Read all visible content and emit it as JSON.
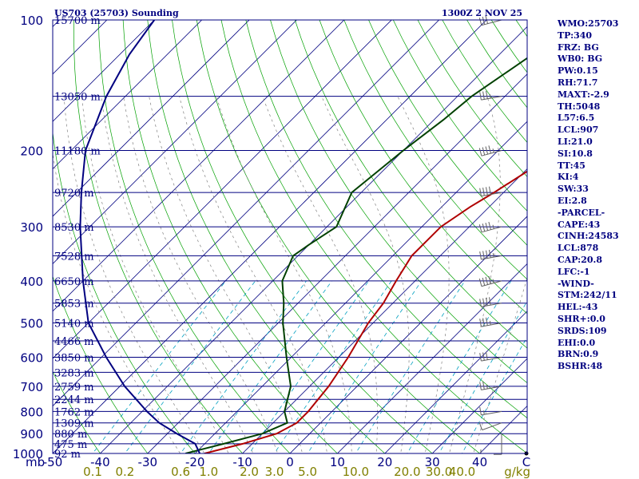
{
  "header": {
    "station": "US703 (25703) Sounding",
    "time": "1300Z  2 NOV 25"
  },
  "chart_data": {
    "type": "line",
    "title": "US703 (25703) Sounding",
    "xlabel": "C",
    "ylabel": "mb",
    "x_range": [
      -50,
      50
    ],
    "x_ticks": [
      -50,
      -40,
      -30,
      -20,
      -10,
      0,
      10,
      20,
      30,
      40
    ],
    "x_tick_labels": [
      "-50",
      "-40",
      "-30",
      "-20",
      "-10",
      "0",
      "10",
      "20",
      "30",
      "40"
    ],
    "y_range_mb": [
      1000,
      100
    ],
    "pressure_ticks": [
      100,
      200,
      300,
      400,
      500,
      600,
      700,
      800,
      900,
      1000
    ],
    "mixing_ratio_unit": "g/kg",
    "mixing_ratio_values": [
      0.1,
      0.2,
      0.6,
      1.0,
      2.0,
      3.0,
      5.0,
      10.0,
      20.0,
      30.0,
      40.0
    ],
    "mixing_ratio_labels": [
      "0.1",
      "0.2",
      "0.6",
      "1.0",
      "2.0",
      "3.0",
      "5.0",
      "10.0",
      "20.0",
      "30.0",
      "40.0"
    ],
    "height_levels": [
      {
        "p": 100,
        "label": "15700 m"
      },
      {
        "p": 150,
        "label": "13050 m"
      },
      {
        "p": 200,
        "label": "11180 m"
      },
      {
        "p": 250,
        "label": "9720 m"
      },
      {
        "p": 300,
        "label": "8530 m"
      },
      {
        "p": 350,
        "label": "7528 m"
      },
      {
        "p": 400,
        "label": "6650 m"
      },
      {
        "p": 450,
        "label": "5853 m"
      },
      {
        "p": 500,
        "label": "5140 m"
      },
      {
        "p": 550,
        "label": "4466 m"
      },
      {
        "p": 600,
        "label": "3850 m"
      },
      {
        "p": 650,
        "label": "3283 m"
      },
      {
        "p": 700,
        "label": "2759 m"
      },
      {
        "p": 750,
        "label": "2244 m"
      },
      {
        "p": 800,
        "label": "1762 m"
      },
      {
        "p": 850,
        "label": "1309 m"
      },
      {
        "p": 900,
        "label": "880 m"
      },
      {
        "p": 950,
        "label": "475 m"
      },
      {
        "p": 1000,
        "label": "92 m"
      }
    ],
    "series": [
      {
        "name": "temperature",
        "color": "#b00000",
        "points": [
          [
            1000,
            -18
          ],
          [
            950,
            -12
          ],
          [
            900,
            -7
          ],
          [
            850,
            -5
          ],
          [
            800,
            -5
          ],
          [
            700,
            -6
          ],
          [
            600,
            -8
          ],
          [
            500,
            -11
          ],
          [
            450,
            -12
          ],
          [
            400,
            -14
          ],
          [
            350,
            -16
          ],
          [
            300,
            -16
          ],
          [
            270,
            -14
          ],
          [
            250,
            -12
          ],
          [
            200,
            -7
          ],
          [
            170,
            -6
          ],
          [
            150,
            -5
          ],
          [
            120,
            -3
          ],
          [
            100,
            -3
          ]
        ]
      },
      {
        "name": "dewpoint",
        "color": "#004000",
        "points": [
          [
            1000,
            -22
          ],
          [
            950,
            -16
          ],
          [
            900,
            -10
          ],
          [
            850,
            -7
          ],
          [
            800,
            -10
          ],
          [
            700,
            -14
          ],
          [
            600,
            -21
          ],
          [
            500,
            -29
          ],
          [
            450,
            -33
          ],
          [
            400,
            -38
          ],
          [
            350,
            -41
          ],
          [
            330,
            -40
          ],
          [
            300,
            -38
          ],
          [
            250,
            -42
          ],
          [
            200,
            -40
          ],
          [
            170,
            -38
          ],
          [
            150,
            -37
          ],
          [
            120,
            -33
          ],
          [
            100,
            -30
          ]
        ]
      },
      {
        "name": "lifted-parcel",
        "color": "#000080",
        "points": [
          [
            1000,
            -19
          ],
          [
            950,
            -22
          ],
          [
            900,
            -28
          ],
          [
            850,
            -34
          ],
          [
            800,
            -39
          ],
          [
            700,
            -49
          ],
          [
            600,
            -59
          ],
          [
            500,
            -70
          ],
          [
            400,
            -80
          ],
          [
            300,
            -92
          ],
          [
            250,
            -99
          ],
          [
            200,
            -107
          ],
          [
            150,
            -114
          ],
          [
            120,
            -118
          ],
          [
            100,
            -120
          ]
        ]
      }
    ],
    "wind_barbs": [
      {
        "p": 1000,
        "dir": 270,
        "speed": 5
      },
      {
        "p": 900,
        "dir": 180,
        "speed": 10
      },
      {
        "p": 850,
        "dir": 250,
        "speed": 10
      },
      {
        "p": 800,
        "dir": 260,
        "speed": 15
      },
      {
        "p": 700,
        "dir": 260,
        "speed": 25
      },
      {
        "p": 600,
        "dir": 260,
        "speed": 30
      },
      {
        "p": 500,
        "dir": 260,
        "speed": 35
      },
      {
        "p": 450,
        "dir": 260,
        "speed": 40
      },
      {
        "p": 400,
        "dir": 255,
        "speed": 45
      },
      {
        "p": 350,
        "dir": 260,
        "speed": 45
      },
      {
        "p": 300,
        "dir": 255,
        "speed": 45
      },
      {
        "p": 250,
        "dir": 260,
        "speed": 40
      },
      {
        "p": 200,
        "dir": 255,
        "speed": 45
      },
      {
        "p": 150,
        "dir": 260,
        "speed": 35
      },
      {
        "p": 100,
        "dir": 255,
        "speed": 30
      }
    ]
  },
  "indices": [
    "WMO:25703",
    "TP:340",
    "FRZ: BG",
    "WB0: BG",
    "PW:0.15",
    "RH:71.7",
    "MAXT:-2.9",
    "TH:5048",
    "L57:6.5",
    "LCL:907",
    "LI:21.0",
    "SI:10.8",
    "TT:45",
    "KI:4",
    "SW:33",
    "EI:2.8",
    "-PARCEL-",
    "CAPE:43",
    "CINH:24583",
    "LCL:878",
    "CAP:20.8",
    "LFC:-1",
    "-WIND-",
    "STM:242/11",
    "HEL:-43",
    "SHR+:0.0",
    "SRDS:109",
    "EHI:0.0",
    "BRN:0.9",
    "BSHR:48"
  ],
  "colors": {
    "frame": "#000080",
    "isobar": "#000080",
    "isotherm": "#000080",
    "dry_adiabat": "#00a000",
    "moist_adiabat": "#00a000",
    "mixing_ratio": "#00a0c0",
    "saturated": "#808080",
    "mixing_label": "#808000",
    "barb": "#606060"
  }
}
